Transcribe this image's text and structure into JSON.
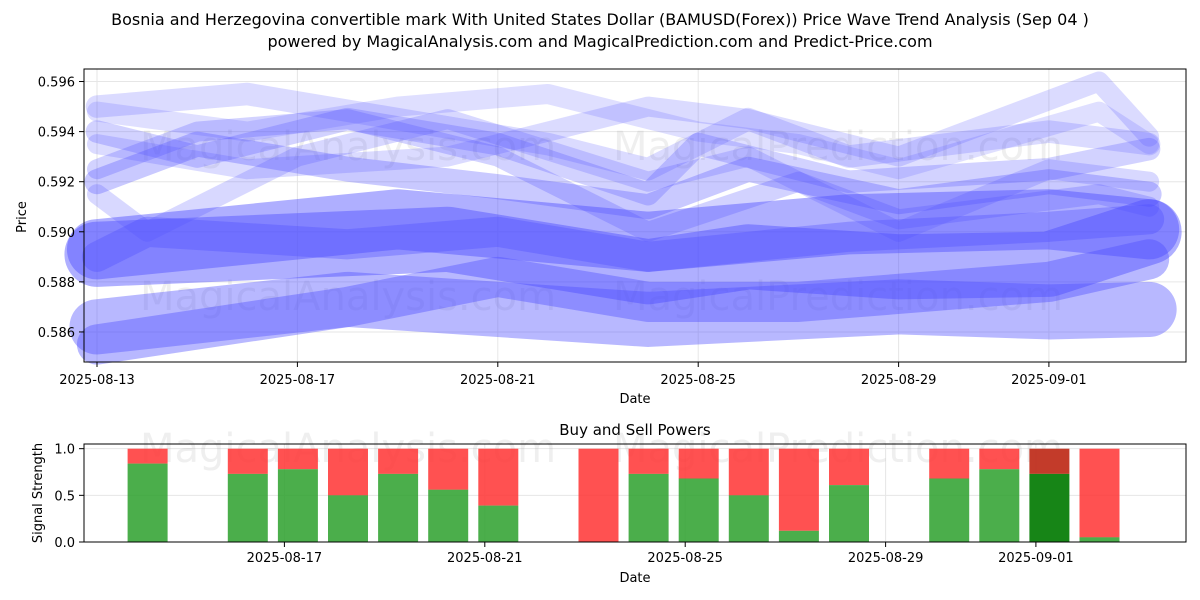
{
  "header": {
    "title_line1": "Bosnia and Herzegovina convertible mark With United States Dollar (BAMUSD(Forex)) Price Wave Trend Analysis (Sep 04 )",
    "title_line2": "powered by MagicalAnalysis.com and MagicalPrediction.com and Predict-Price.com"
  },
  "watermarks": [
    "MagicalAnalysis.com",
    "MagicalPrediction.com"
  ],
  "colors": {
    "wave": "#4d4dff",
    "buy": "#2ca02c",
    "sell": "#ff3333",
    "buy_highlight": "#178517",
    "sell_highlight": "#c0301f"
  },
  "chart_data": [
    {
      "type": "line",
      "title": "",
      "xlabel": "Date",
      "ylabel": "Price",
      "x_ticks": [
        "2025-08-13",
        "2025-08-17",
        "2025-08-21",
        "2025-08-25",
        "2025-08-29",
        "2025-09-01"
      ],
      "x_range": [
        "2025-08-13",
        "2025-09-04"
      ],
      "y_ticks": [
        "0.586",
        "0.588",
        "0.590",
        "0.592",
        "0.594",
        "0.596"
      ],
      "ylim": [
        0.5848,
        0.5965
      ],
      "grid": true,
      "series": [
        {
          "alpha": 0.45,
          "width": 2.6,
          "x": [
            "2025-08-13",
            "2025-08-20",
            "2025-08-24",
            "2025-08-26",
            "2025-08-29",
            "2025-09-01",
            "2025-09-03"
          ],
          "y": [
            0.5891,
            0.5897,
            0.5884,
            0.589,
            0.5886,
            0.5887,
            0.59
          ]
        },
        {
          "alpha": 0.45,
          "width": 2.4,
          "x": [
            "2025-08-13",
            "2025-08-19",
            "2025-08-24",
            "2025-08-28",
            "2025-09-01",
            "2025-09-03"
          ],
          "y": [
            0.5893,
            0.5905,
            0.5896,
            0.5903,
            0.5905,
            0.5901
          ]
        },
        {
          "alpha": 0.4,
          "width": 2.2,
          "x": [
            "2025-08-13",
            "2025-08-18",
            "2025-08-24",
            "2025-08-29",
            "2025-09-01",
            "2025-09-03"
          ],
          "y": [
            0.5862,
            0.5873,
            0.5865,
            0.587,
            0.5868,
            0.5869
          ]
        },
        {
          "alpha": 0.4,
          "width": 1.6,
          "x": [
            "2025-08-13",
            "2025-08-18",
            "2025-08-21",
            "2025-08-24",
            "2025-08-27",
            "2025-09-01",
            "2025-09-03"
          ],
          "y": [
            0.5855,
            0.587,
            0.5882,
            0.5872,
            0.5872,
            0.588,
            0.5889
          ]
        },
        {
          "alpha": 0.35,
          "width": 1.2,
          "x": [
            "2025-08-13",
            "2025-08-14",
            "2025-08-18",
            "2025-08-21",
            "2025-08-24",
            "2025-08-28",
            "2025-09-01",
            "2025-09-03"
          ],
          "y": [
            0.589,
            0.59,
            0.5895,
            0.59,
            0.589,
            0.5898,
            0.5902,
            0.5905
          ]
        },
        {
          "alpha": 0.3,
          "width": 1.0,
          "x": [
            "2025-08-13",
            "2025-08-15",
            "2025-08-18",
            "2025-08-21",
            "2025-08-24",
            "2025-08-26",
            "2025-08-29",
            "2025-09-01",
            "2025-09-03"
          ],
          "y": [
            0.592,
            0.5935,
            0.5925,
            0.5918,
            0.591,
            0.5925,
            0.5912,
            0.592,
            0.5915
          ]
        },
        {
          "alpha": 0.25,
          "width": 0.9,
          "x": [
            "2025-08-13",
            "2025-08-15",
            "2025-08-18",
            "2025-08-21",
            "2025-08-24",
            "2025-08-25",
            "2025-08-28",
            "2025-09-01",
            "2025-09-03"
          ],
          "y": [
            0.594,
            0.593,
            0.5945,
            0.5935,
            0.5915,
            0.5935,
            0.592,
            0.5925,
            0.5933
          ]
        },
        {
          "alpha": 0.2,
          "width": 0.9,
          "x": [
            "2025-08-13",
            "2025-08-16",
            "2025-08-19",
            "2025-08-22",
            "2025-08-24",
            "2025-08-26",
            "2025-08-28",
            "2025-09-01",
            "2025-09-03"
          ],
          "y": [
            0.595,
            0.5955,
            0.5945,
            0.5935,
            0.5925,
            0.5945,
            0.593,
            0.594,
            0.5935
          ]
        },
        {
          "alpha": 0.2,
          "width": 0.8,
          "x": [
            "2025-08-13",
            "2025-08-16",
            "2025-08-20",
            "2025-08-24",
            "2025-08-26",
            "2025-08-29",
            "2025-09-02",
            "2025-09-03"
          ],
          "y": [
            0.5935,
            0.5925,
            0.593,
            0.595,
            0.5945,
            0.593,
            0.596,
            0.5938
          ]
        },
        {
          "alpha": 0.22,
          "width": 0.8,
          "x": [
            "2025-08-13",
            "2025-08-14",
            "2025-08-17",
            "2025-08-20",
            "2025-08-24",
            "2025-08-26",
            "2025-08-29",
            "2025-09-01",
            "2025-09-03"
          ],
          "y": [
            0.5915,
            0.59,
            0.593,
            0.5945,
            0.592,
            0.593,
            0.59,
            0.5925,
            0.592
          ]
        },
        {
          "alpha": 0.25,
          "width": 0.8,
          "x": [
            "2025-08-13",
            "2025-08-15",
            "2025-08-18",
            "2025-08-21",
            "2025-08-24",
            "2025-08-27",
            "2025-08-29",
            "2025-09-02",
            "2025-09-03"
          ],
          "y": [
            0.5925,
            0.594,
            0.5945,
            0.593,
            0.59,
            0.592,
            0.5905,
            0.5915,
            0.591
          ]
        },
        {
          "alpha": 0.18,
          "width": 0.8,
          "x": [
            "2025-08-13",
            "2025-08-16",
            "2025-08-19",
            "2025-08-22",
            "2025-08-25",
            "2025-08-27",
            "2025-08-29",
            "2025-09-02",
            "2025-09-03"
          ],
          "y": [
            0.5948,
            0.594,
            0.595,
            0.5955,
            0.594,
            0.5935,
            0.5925,
            0.5948,
            0.5935
          ]
        }
      ]
    },
    {
      "type": "bar",
      "title": "Buy and Sell Powers",
      "xlabel": "Date",
      "ylabel": "Signal Strength",
      "x_ticks": [
        "2025-08-17",
        "2025-08-21",
        "2025-08-25",
        "2025-08-29",
        "2025-09-01"
      ],
      "y_ticks": [
        "0.0",
        "0.5",
        "1.0"
      ],
      "ylim": [
        0,
        1.05
      ],
      "grid": true,
      "bars": [
        {
          "date": "2025-08-14",
          "buy": 0.84
        },
        {
          "date": "2025-08-16",
          "buy": 0.73
        },
        {
          "date": "2025-08-17",
          "buy": 0.78
        },
        {
          "date": "2025-08-18",
          "buy": 0.5
        },
        {
          "date": "2025-08-19",
          "buy": 0.73
        },
        {
          "date": "2025-08-20",
          "buy": 0.56
        },
        {
          "date": "2025-08-21",
          "buy": 0.39
        },
        {
          "date": "2025-08-23",
          "buy": 0.0
        },
        {
          "date": "2025-08-24",
          "buy": 0.73
        },
        {
          "date": "2025-08-25",
          "buy": 0.68
        },
        {
          "date": "2025-08-26",
          "buy": 0.5
        },
        {
          "date": "2025-08-27",
          "buy": 0.12
        },
        {
          "date": "2025-08-28",
          "buy": 0.61
        },
        {
          "date": "2025-08-30",
          "buy": 0.68
        },
        {
          "date": "2025-08-31",
          "buy": 0.78
        },
        {
          "date": "2025-09-01",
          "buy": 0.73,
          "highlight": true
        },
        {
          "date": "2025-09-02",
          "buy": 0.05
        }
      ]
    }
  ]
}
